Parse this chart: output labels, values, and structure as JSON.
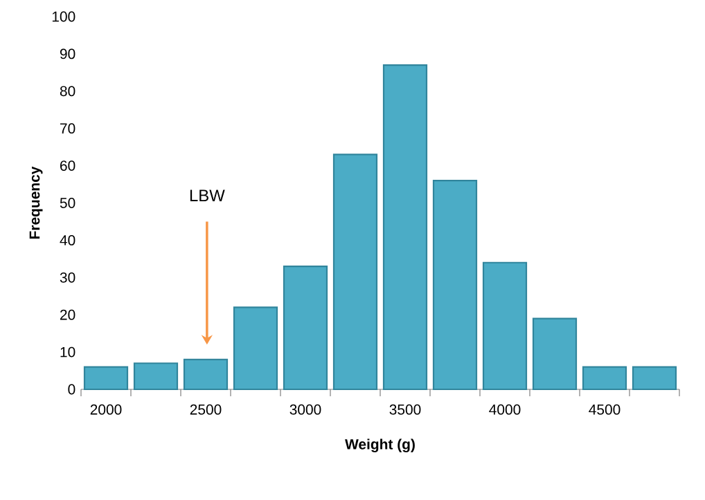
{
  "chart_data": {
    "type": "bar",
    "xlabel": "Weight (g)",
    "ylabel": "Frequency",
    "categories": [
      "2000",
      null,
      "2500",
      null,
      "3000",
      null,
      "3500",
      null,
      "4000",
      null,
      "4500",
      null
    ],
    "values": [
      6,
      7,
      8,
      22,
      33,
      63,
      87,
      56,
      34,
      19,
      6,
      6
    ],
    "color": "#4bacc6",
    "ylim": [
      0,
      100
    ],
    "yticks": [
      0,
      10,
      20,
      30,
      40,
      50,
      60,
      70,
      80,
      90,
      100
    ],
    "grid": false,
    "annotations": [
      "LBW"
    ]
  }
}
